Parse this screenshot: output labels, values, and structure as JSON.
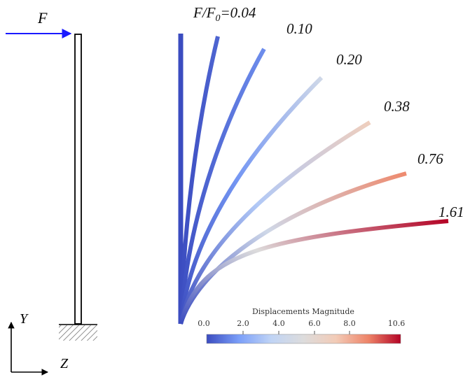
{
  "schematic": {
    "force_label": "F",
    "force_arrow_color": "#1a1aff",
    "axis_y_label": "Y",
    "axis_z_label": "Z"
  },
  "curves": {
    "ratio_prefix": "F/F",
    "ratio_sub": "0",
    "items": [
      {
        "ratio": "0.04",
        "label": "=0.04"
      },
      {
        "ratio": "0.10",
        "label": "0.10"
      },
      {
        "ratio": "0.20",
        "label": "0.20"
      },
      {
        "ratio": "0.38",
        "label": "0.38"
      },
      {
        "ratio": "0.76",
        "label": "0.76"
      },
      {
        "ratio": "1.61",
        "label": "1.61"
      }
    ]
  },
  "colorbar": {
    "title": "Displacements Magnitude",
    "ticks": [
      "0.0",
      "2.0",
      "4.0",
      "6.0",
      "8.0",
      "10.6"
    ],
    "min": 0.0,
    "max": 10.6,
    "colors": [
      "#3b4cc0",
      "#7b9ff9",
      "#c0d4f5",
      "#dddcdc",
      "#f2cbb7",
      "#ee8468",
      "#b40426"
    ]
  }
}
